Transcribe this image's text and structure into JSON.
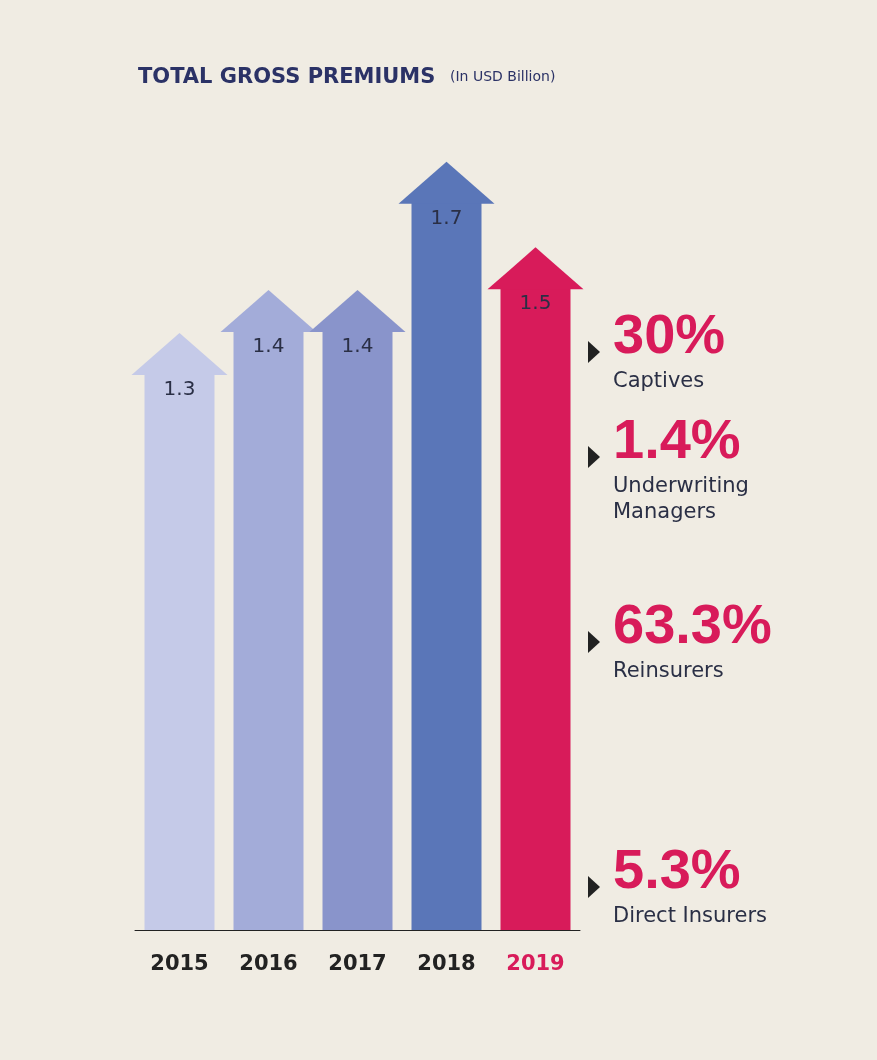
{
  "chart_data": {
    "type": "bar",
    "title": "TOTAL GROSS PREMIUMS",
    "subtitle": "(In USD Billion)",
    "categories": [
      "2015",
      "2016",
      "2017",
      "2018",
      "2019"
    ],
    "values": [
      1.3,
      1.4,
      1.4,
      1.7,
      1.5
    ],
    "colors": [
      "#c5cae8",
      "#a3acd9",
      "#8994cb",
      "#5a76b8",
      "#d81b5a"
    ],
    "data_labels": true,
    "annotations": [
      "30%",
      "Captives",
      "1.4%",
      "Underwriting Managers",
      "63.3%",
      "Reinsurers",
      "5.3%",
      "Direct Insurers"
    ]
  }
}
